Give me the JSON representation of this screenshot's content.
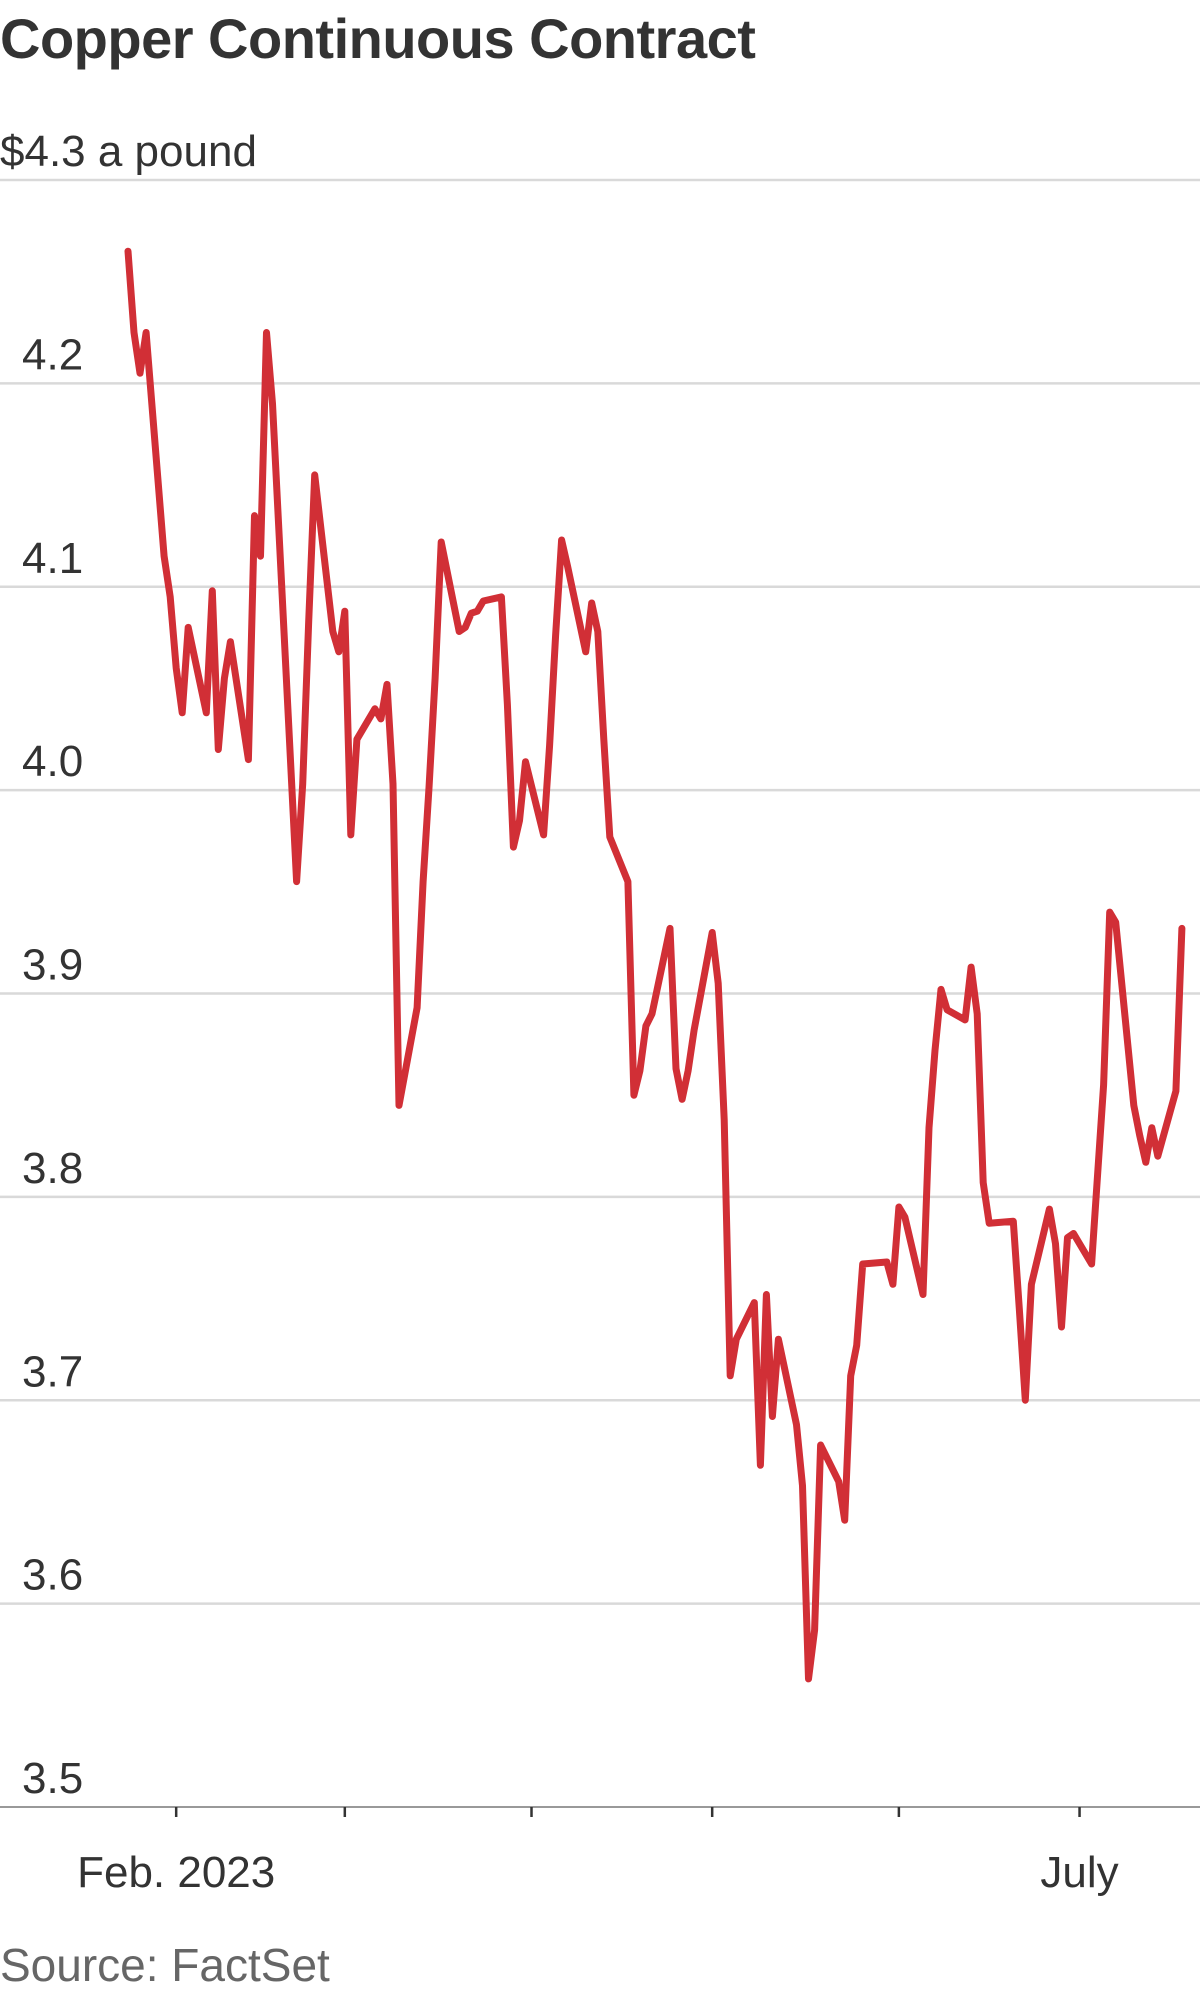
{
  "title": "Copper Continuous Contract",
  "source": "Source: FactSet",
  "chart_data": {
    "type": "line",
    "title": "Copper Continuous Contract",
    "ylabel": "",
    "xlabel": "",
    "ylim": [
      3.5,
      4.3
    ],
    "y_ticks": [
      {
        "value": 4.3,
        "label": "$4.3 a pound"
      },
      {
        "value": 4.2,
        "label": "4.2"
      },
      {
        "value": 4.1,
        "label": "4.1"
      },
      {
        "value": 4.0,
        "label": "4.0"
      },
      {
        "value": 3.9,
        "label": "3.9"
      },
      {
        "value": 3.8,
        "label": "3.8"
      },
      {
        "value": 3.7,
        "label": "3.7"
      },
      {
        "value": 3.6,
        "label": "3.6"
      },
      {
        "value": 3.5,
        "label": "3.5"
      }
    ],
    "x_range": [
      "2023-01-24",
      "2023-07-21"
    ],
    "x_ticks": [
      {
        "date": "2023-02-01",
        "label": "Feb. 2023"
      },
      {
        "date": "2023-03-01",
        "label": ""
      },
      {
        "date": "2023-04-01",
        "label": ""
      },
      {
        "date": "2023-05-01",
        "label": ""
      },
      {
        "date": "2023-06-01",
        "label": ""
      },
      {
        "date": "2023-07-01",
        "label": "July"
      }
    ],
    "grid": true,
    "line_color": "#d12f36",
    "series": [
      {
        "points": [
          [
            "2023-01-24",
            4.265
          ],
          [
            "2023-01-25",
            4.225
          ],
          [
            "2023-01-26",
            4.205
          ],
          [
            "2023-01-27",
            4.225
          ],
          [
            "2023-01-30",
            4.115
          ],
          [
            "2023-01-31",
            4.095
          ],
          [
            "2023-02-01",
            4.06
          ],
          [
            "2023-02-02",
            4.038
          ],
          [
            "2023-02-03",
            4.08
          ],
          [
            "2023-02-06",
            4.038
          ],
          [
            "2023-02-07",
            4.098
          ],
          [
            "2023-02-08",
            4.02
          ],
          [
            "2023-02-09",
            4.055
          ],
          [
            "2023-02-10",
            4.073
          ],
          [
            "2023-02-13",
            4.015
          ],
          [
            "2023-02-14",
            4.135
          ],
          [
            "2023-02-15",
            4.115
          ],
          [
            "2023-02-16",
            4.225
          ],
          [
            "2023-02-17",
            4.19
          ],
          [
            "2023-02-21",
            3.955
          ],
          [
            "2023-02-22",
            4.003
          ],
          [
            "2023-02-23",
            4.083
          ],
          [
            "2023-02-24",
            4.155
          ],
          [
            "2023-02-27",
            4.078
          ],
          [
            "2023-02-28",
            4.068
          ],
          [
            "2023-03-01",
            4.088
          ],
          [
            "2023-03-02",
            3.978
          ],
          [
            "2023-03-03",
            4.025
          ],
          [
            "2023-03-06",
            4.04
          ],
          [
            "2023-03-07",
            4.035
          ],
          [
            "2023-03-08",
            4.052
          ],
          [
            "2023-03-09",
            4.003
          ],
          [
            "2023-03-10",
            3.845
          ],
          [
            "2023-03-13",
            3.893
          ],
          [
            "2023-03-14",
            3.955
          ],
          [
            "2023-03-15",
            4.002
          ],
          [
            "2023-03-16",
            4.055
          ],
          [
            "2023-03-17",
            4.122
          ],
          [
            "2023-03-20",
            4.078
          ],
          [
            "2023-03-21",
            4.08
          ],
          [
            "2023-03-22",
            4.087
          ],
          [
            "2023-03-23",
            4.088
          ],
          [
            "2023-03-24",
            4.093
          ],
          [
            "2023-03-27",
            4.095
          ],
          [
            "2023-03-28",
            4.042
          ],
          [
            "2023-03-29",
            3.972
          ],
          [
            "2023-03-30",
            3.985
          ],
          [
            "2023-03-31",
            4.014
          ],
          [
            "2023-04-03",
            3.978
          ],
          [
            "2023-04-04",
            4.022
          ],
          [
            "2023-04-05",
            4.076
          ],
          [
            "2023-04-06",
            4.123
          ],
          [
            "2023-04-07",
            4.11
          ],
          [
            "2023-04-10",
            4.068
          ],
          [
            "2023-04-11",
            4.092
          ],
          [
            "2023-04-12",
            4.078
          ],
          [
            "2023-04-13",
            4.025
          ],
          [
            "2023-04-14",
            3.977
          ],
          [
            "2023-04-17",
            3.955
          ],
          [
            "2023-04-18",
            3.85
          ],
          [
            "2023-04-19",
            3.862
          ],
          [
            "2023-04-20",
            3.884
          ],
          [
            "2023-04-21",
            3.89
          ],
          [
            "2023-04-24",
            3.932
          ],
          [
            "2023-04-25",
            3.863
          ],
          [
            "2023-04-26",
            3.848
          ],
          [
            "2023-04-27",
            3.862
          ],
          [
            "2023-04-28",
            3.882
          ],
          [
            "2023-05-01",
            3.93
          ],
          [
            "2023-05-02",
            3.905
          ],
          [
            "2023-05-03",
            3.838
          ],
          [
            "2023-05-04",
            3.712
          ],
          [
            "2023-05-05",
            3.73
          ],
          [
            "2023-05-08",
            3.748
          ],
          [
            "2023-05-09",
            3.668
          ],
          [
            "2023-05-10",
            3.752
          ],
          [
            "2023-05-11",
            3.692
          ],
          [
            "2023-05-12",
            3.73
          ],
          [
            "2023-05-15",
            3.688
          ],
          [
            "2023-05-16",
            3.658
          ],
          [
            "2023-05-17",
            3.563
          ],
          [
            "2023-05-18",
            3.587
          ],
          [
            "2023-05-19",
            3.678
          ],
          [
            "2023-05-22",
            3.66
          ],
          [
            "2023-05-23",
            3.641
          ],
          [
            "2023-05-24",
            3.712
          ],
          [
            "2023-05-25",
            3.727
          ],
          [
            "2023-05-26",
            3.767
          ],
          [
            "2023-05-30",
            3.768
          ],
          [
            "2023-05-31",
            3.757
          ],
          [
            "2023-06-01",
            3.795
          ],
          [
            "2023-06-02",
            3.79
          ],
          [
            "2023-06-05",
            3.752
          ],
          [
            "2023-06-06",
            3.834
          ],
          [
            "2023-06-07",
            3.872
          ],
          [
            "2023-06-08",
            3.902
          ],
          [
            "2023-06-09",
            3.892
          ],
          [
            "2023-06-12",
            3.887
          ],
          [
            "2023-06-13",
            3.913
          ],
          [
            "2023-06-14",
            3.89
          ],
          [
            "2023-06-15",
            3.807
          ],
          [
            "2023-06-16",
            3.787
          ],
          [
            "2023-06-20",
            3.788
          ],
          [
            "2023-06-21",
            3.745
          ],
          [
            "2023-06-22",
            3.7
          ],
          [
            "2023-06-23",
            3.757
          ],
          [
            "2023-06-26",
            3.794
          ],
          [
            "2023-06-27",
            3.777
          ],
          [
            "2023-06-28",
            3.736
          ],
          [
            "2023-06-29",
            3.78
          ],
          [
            "2023-06-30",
            3.782
          ],
          [
            "2023-07-03",
            3.767
          ],
          [
            "2023-07-05",
            3.855
          ],
          [
            "2023-07-06",
            3.94
          ],
          [
            "2023-07-07",
            3.935
          ],
          [
            "2023-07-10",
            3.845
          ],
          [
            "2023-07-11",
            3.83
          ],
          [
            "2023-07-12",
            3.817
          ],
          [
            "2023-07-13",
            3.834
          ],
          [
            "2023-07-14",
            3.82
          ],
          [
            "2023-07-17",
            3.852
          ],
          [
            "2023-07-18",
            3.932
          ]
        ]
      }
    ]
  }
}
